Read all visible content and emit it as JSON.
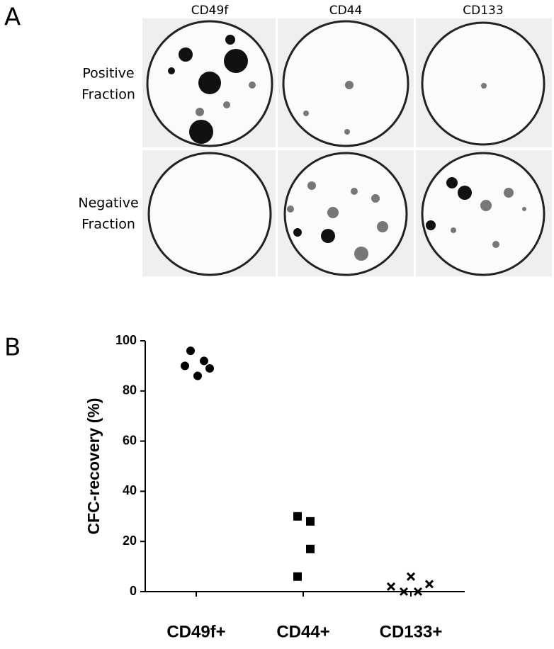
{
  "panel_a": {
    "label": "A",
    "columns": [
      "CD49f",
      "CD44",
      "CD133"
    ],
    "rows": [
      [
        "Positive",
        "Fraction"
      ],
      [
        "Negative",
        "Fraction"
      ]
    ]
  },
  "chart_data": {
    "type": "dotplot",
    "label": "B",
    "ylabel": "CFC-recovery (%)",
    "categories": [
      "CD49f+",
      "CD44+",
      "CD133+"
    ],
    "values": [
      [
        96,
        90,
        92,
        86,
        89
      ],
      [
        30,
        28,
        17,
        6
      ],
      [
        2,
        6,
        0,
        0,
        3
      ]
    ],
    "markers": [
      "circle",
      "square",
      "x"
    ],
    "color": "#000000",
    "ylim": [
      0,
      100
    ],
    "yticks": [
      0,
      20,
      40,
      60,
      80,
      100
    ]
  }
}
